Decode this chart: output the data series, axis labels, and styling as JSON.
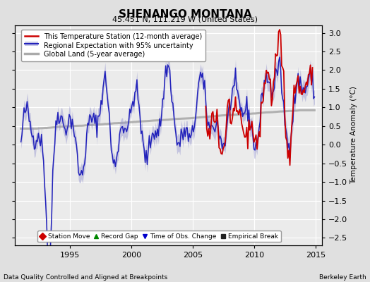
{
  "title": "SHENANGO MONTANA",
  "subtitle": "45.451 N, 111.219 W (United States)",
  "ylabel_right": "Temperature Anomaly (°C)",
  "footer_left": "Data Quality Controlled and Aligned at Breakpoints",
  "footer_right": "Berkeley Earth",
  "xlim": [
    1990.5,
    2015.5
  ],
  "ylim": [
    -2.7,
    3.2
  ],
  "yticks": [
    -2.5,
    -2,
    -1.5,
    -1,
    -0.5,
    0,
    0.5,
    1,
    1.5,
    2,
    2.5,
    3
  ],
  "xticks": [
    1995,
    2000,
    2005,
    2010,
    2015
  ],
  "bg_color": "#e0e0e0",
  "plot_bg_color": "#ebebeb",
  "grid_color": "#ffffff",
  "station_color": "#cc0000",
  "regional_color": "#2222bb",
  "regional_fill_color": "#8888cc",
  "global_color": "#aaaaaa",
  "seed": 42,
  "legend_items": [
    {
      "label": "This Temperature Station (12-month average)",
      "color": "#cc0000",
      "lw": 1.5
    },
    {
      "label": "Regional Expectation with 95% uncertainty",
      "color": "#2222bb",
      "lw": 1.5
    },
    {
      "label": "Global Land (5-year average)",
      "color": "#aaaaaa",
      "lw": 2.5
    }
  ],
  "marker_legend": [
    {
      "label": "Station Move",
      "marker": "D",
      "color": "#cc0000"
    },
    {
      "label": "Record Gap",
      "marker": "^",
      "color": "#008800"
    },
    {
      "label": "Time of Obs. Change",
      "marker": "v",
      "color": "#0000cc"
    },
    {
      "label": "Empirical Break",
      "marker": "s",
      "color": "#222222"
    }
  ]
}
